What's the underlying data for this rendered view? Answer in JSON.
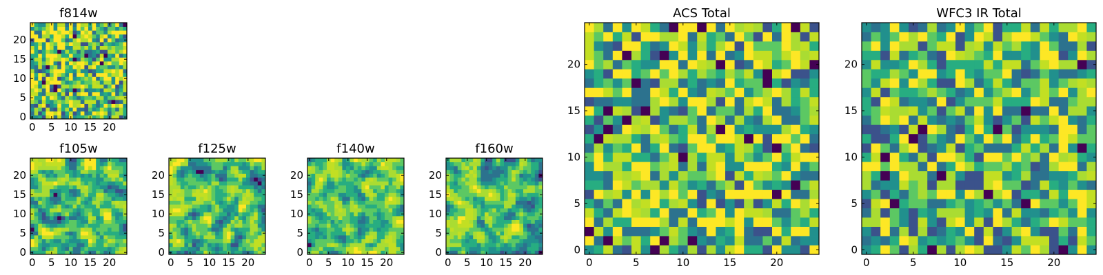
{
  "palette": [
    "#440154",
    "#3b528b",
    "#2c728e",
    "#21908d",
    "#27ad81",
    "#5cc863",
    "#aadc32",
    "#c2df23",
    "#fde725"
  ],
  "chart_data": [
    {
      "type": "heatmap",
      "title": "f814w",
      "grid_size": 25,
      "xticks": [
        0,
        5,
        10,
        15,
        20
      ],
      "yticks": [
        0,
        5,
        10,
        15,
        20
      ],
      "seed": 11,
      "bias": 0.62,
      "smooth": 0
    },
    {
      "type": "heatmap",
      "title": "f105w",
      "grid_size": 25,
      "xticks": [
        0,
        5,
        10,
        15,
        20
      ],
      "yticks": [
        0,
        5,
        10,
        15,
        20
      ],
      "seed": 23,
      "bias": 0.6,
      "smooth": 1
    },
    {
      "type": "heatmap",
      "title": "f125w",
      "grid_size": 25,
      "xticks": [
        0,
        5,
        10,
        15,
        20
      ],
      "yticks": [
        0,
        5,
        10,
        15,
        20
      ],
      "seed": 37,
      "bias": 0.58,
      "smooth": 1
    },
    {
      "type": "heatmap",
      "title": "f140w",
      "grid_size": 25,
      "xticks": [
        0,
        5,
        10,
        15,
        20
      ],
      "yticks": [
        0,
        5,
        10,
        15,
        20
      ],
      "seed": 41,
      "bias": 0.64,
      "smooth": 1
    },
    {
      "type": "heatmap",
      "title": "f160w",
      "grid_size": 25,
      "xticks": [
        0,
        5,
        10,
        15,
        20
      ],
      "yticks": [
        0,
        5,
        10,
        15,
        20
      ],
      "seed": 53,
      "bias": 0.56,
      "smooth": 1
    },
    {
      "type": "heatmap",
      "title": "ACS Total",
      "grid_size": 25,
      "xticks": [
        0,
        5,
        10,
        15,
        20
      ],
      "yticks": [
        0,
        5,
        10,
        15,
        20
      ],
      "seed": 67,
      "bias": 0.62,
      "smooth": 0
    },
    {
      "type": "heatmap",
      "title": "WFC3 IR Total",
      "grid_size": 25,
      "xticks": [
        0,
        5,
        10,
        15,
        20
      ],
      "yticks": [
        0,
        5,
        10,
        15,
        20
      ],
      "seed": 79,
      "bias": 0.57,
      "smooth": 0
    }
  ]
}
